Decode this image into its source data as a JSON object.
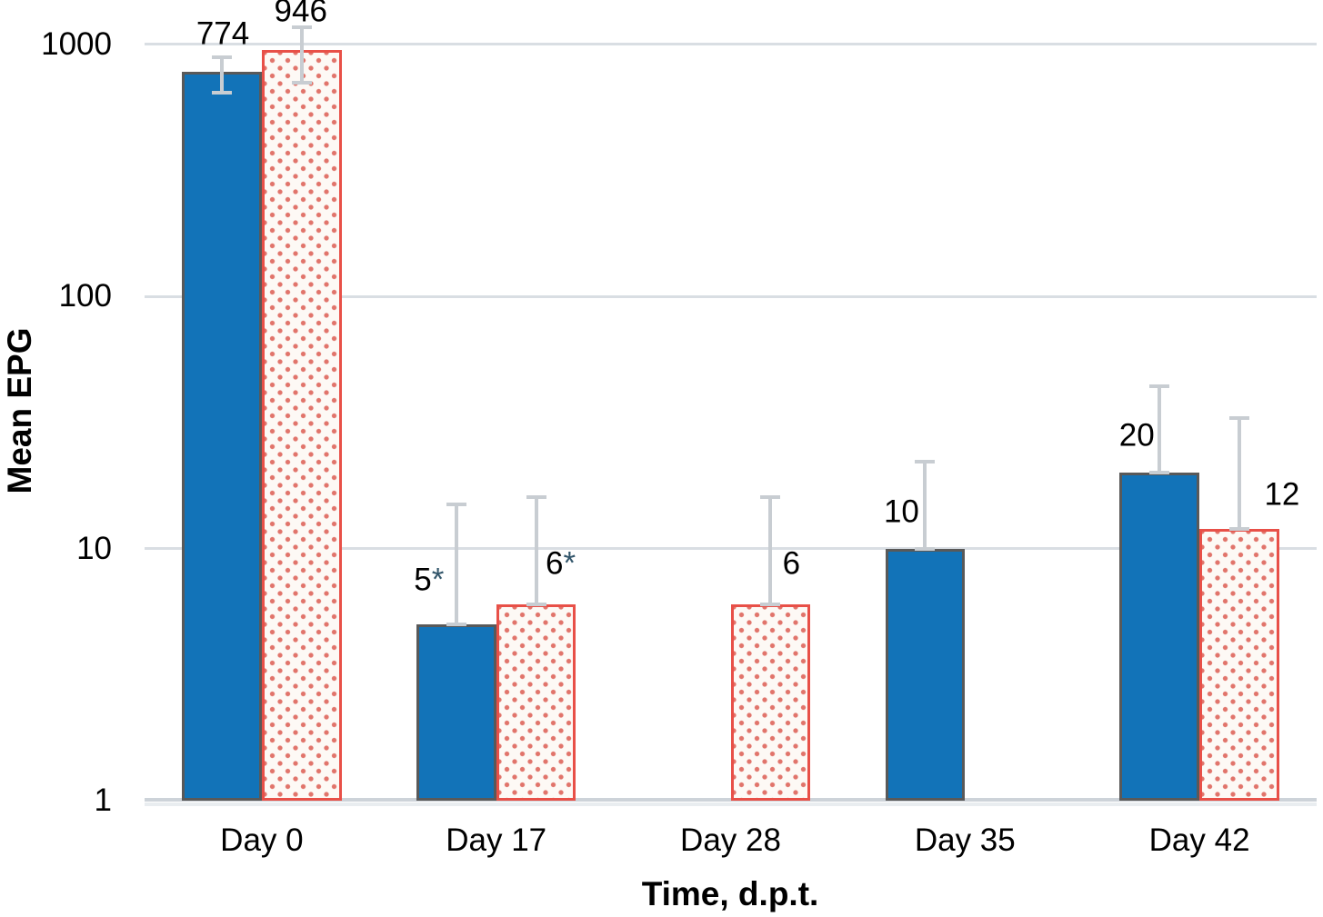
{
  "chart_data": {
    "type": "bar",
    "y_scale": "log10",
    "title": "",
    "ylabel": "Mean EPG",
    "xlabel": "Time, d.p.t.",
    "ylim": [
      1,
      1000
    ],
    "yticks": [
      1000,
      100,
      10,
      1
    ],
    "ytick_labels": [
      "1000",
      "100",
      "10",
      "1"
    ],
    "categories": [
      "Day 0",
      "Day 17",
      "Day 28",
      "Day 35",
      "Day 42"
    ],
    "grid": "horizontal",
    "legend": "none",
    "series": [
      {
        "name": "solid blue bars",
        "style": "solid-blue",
        "values": [
          774,
          5,
          null,
          10,
          20
        ],
        "labels": [
          "774",
          "5*",
          "",
          "10",
          "20"
        ],
        "err_hi": [
          890,
          15,
          null,
          22,
          44
        ],
        "err_lo": [
          640,
          5,
          null,
          10,
          20
        ],
        "label_dx": [
          1,
          -30,
          0,
          -26,
          -25
        ],
        "label_dy": [
          41,
          48,
          0,
          40,
          40
        ]
      },
      {
        "name": "red dotted bars",
        "style": "dotted-red",
        "values": [
          946,
          6,
          6,
          null,
          12
        ],
        "labels": [
          "946",
          "6*",
          "6",
          "",
          "12"
        ],
        "err_hi": [
          1170,
          16,
          16,
          null,
          33
        ],
        "err_lo": [
          700,
          6,
          6,
          null,
          12
        ],
        "label_dx": [
          -1,
          27,
          23,
          0,
          47
        ],
        "label_dy": [
          42,
          44,
          44,
          0,
          37
        ]
      }
    ],
    "colors": {
      "blue_fill": "#1273b8",
      "blue_border": "#595959",
      "red_border": "#e85048",
      "red_dot": "#e1746b",
      "red_bg": "#fdf9f5",
      "error_bar": "#c8cdd2",
      "gridline": "#d9dee3",
      "axis_line": "#cdd3d9",
      "text": "#000000",
      "asterisk": "#33566b"
    }
  }
}
